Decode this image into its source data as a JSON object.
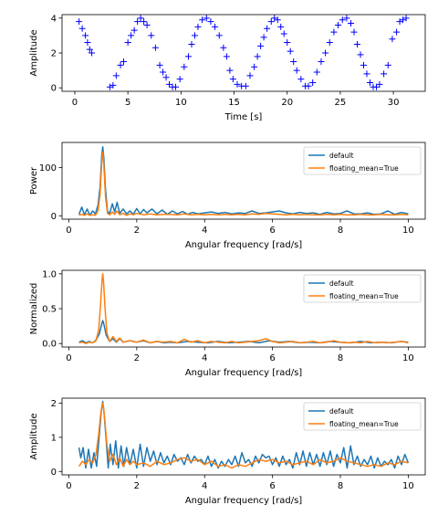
{
  "chart_data": [
    {
      "type": "scatter",
      "xlabel": "Time [s]",
      "ylabel": "Amplitude",
      "xlim": [
        -1.2,
        33.0
      ],
      "ylim": [
        -0.2,
        4.2
      ],
      "xticks": [
        0,
        5,
        10,
        15,
        20,
        25,
        30
      ],
      "yticks": [
        0,
        2,
        4
      ],
      "marker": "+",
      "series": [
        {
          "color": "#0000ff",
          "x": [
            0.4,
            0.7,
            1.0,
            1.2,
            1.4,
            1.6,
            3.3,
            3.6,
            3.9,
            4.3,
            4.6,
            5.0,
            5.3,
            5.6,
            5.9,
            6.2,
            6.5,
            6.8,
            7.2,
            7.6,
            8.0,
            8.3,
            8.6,
            8.9,
            9.2,
            9.5,
            9.9,
            10.3,
            10.7,
            11.0,
            11.3,
            11.6,
            12.0,
            12.4,
            12.8,
            13.2,
            13.6,
            14.0,
            14.3,
            14.6,
            14.9,
            15.3,
            15.7,
            16.1,
            16.5,
            16.9,
            17.2,
            17.5,
            17.8,
            18.1,
            18.5,
            18.8,
            19.1,
            19.4,
            19.7,
            20.0,
            20.3,
            20.6,
            20.9,
            21.3,
            21.7,
            22.0,
            22.4,
            22.8,
            23.2,
            23.6,
            24.0,
            24.4,
            24.8,
            25.2,
            25.6,
            26.0,
            26.3,
            26.6,
            26.9,
            27.2,
            27.5,
            27.8,
            28.1,
            28.4,
            28.7,
            29.1,
            29.5,
            29.9,
            30.3,
            30.6,
            30.9,
            31.2
          ],
          "y": [
            3.8,
            3.4,
            3.0,
            2.6,
            2.2,
            2.0,
            0.05,
            0.15,
            0.7,
            1.3,
            1.5,
            2.6,
            3.0,
            3.3,
            3.8,
            4.0,
            3.8,
            3.6,
            3.0,
            2.3,
            1.3,
            0.9,
            0.6,
            0.2,
            0.05,
            0.05,
            0.5,
            1.2,
            1.8,
            2.5,
            3.0,
            3.5,
            3.9,
            4.0,
            3.8,
            3.5,
            3.0,
            2.3,
            1.8,
            1.0,
            0.5,
            0.2,
            0.1,
            0.1,
            0.7,
            1.2,
            1.8,
            2.4,
            2.9,
            3.4,
            3.8,
            4.0,
            3.9,
            3.5,
            3.1,
            2.6,
            2.1,
            1.5,
            1.0,
            0.5,
            0.1,
            0.1,
            0.3,
            0.9,
            1.5,
            2.0,
            2.6,
            3.2,
            3.6,
            3.9,
            4.0,
            3.7,
            3.2,
            2.5,
            1.9,
            1.3,
            0.8,
            0.3,
            0.05,
            0.05,
            0.2,
            0.8,
            1.3,
            2.8,
            3.2,
            3.8,
            3.9,
            4.0
          ]
        }
      ]
    },
    {
      "type": "line",
      "xlabel": "Angular frequency [rad/s]",
      "ylabel": "Power",
      "xlim": [
        -0.2,
        10.5
      ],
      "ylim": [
        -7,
        152
      ],
      "xticks": [
        0,
        2,
        4,
        6,
        8,
        10
      ],
      "yticks": [
        0,
        100
      ],
      "legend": "top-right",
      "series": [
        {
          "name": "default",
          "color": "#1f77b4",
          "x": [
            0.3,
            0.38,
            0.46,
            0.54,
            0.62,
            0.7,
            0.78,
            0.86,
            0.92,
            0.97,
            1.0,
            1.03,
            1.08,
            1.14,
            1.2,
            1.28,
            1.35,
            1.42,
            1.5,
            1.6,
            1.7,
            1.8,
            1.9,
            2.0,
            2.1,
            2.2,
            2.3,
            2.45,
            2.6,
            2.75,
            2.9,
            3.05,
            3.2,
            3.35,
            3.5,
            3.65,
            3.8,
            4.0,
            4.2,
            4.4,
            4.6,
            4.8,
            5.0,
            5.2,
            5.4,
            5.6,
            5.8,
            6.0,
            6.2,
            6.4,
            6.6,
            6.8,
            7.0,
            7.2,
            7.4,
            7.6,
            7.8,
            8.0,
            8.2,
            8.4,
            8.6,
            8.8,
            9.0,
            9.2,
            9.4,
            9.6,
            9.8,
            10.0
          ],
          "y": [
            3,
            18,
            2,
            14,
            1,
            10,
            4,
            22,
            60,
            125,
            143,
            120,
            55,
            10,
            4,
            25,
            8,
            28,
            5,
            14,
            4,
            10,
            3,
            15,
            4,
            13,
            6,
            14,
            4,
            12,
            3,
            10,
            4,
            9,
            3,
            7,
            4,
            6,
            8,
            5,
            7,
            4,
            6,
            5,
            10,
            5,
            6,
            8,
            10,
            6,
            4,
            7,
            5,
            6,
            3,
            7,
            4,
            5,
            10,
            4,
            4,
            6,
            3,
            4,
            10,
            3,
            7,
            4
          ]
        },
        {
          "name": "floating_mean=True",
          "color": "#ff7f0e",
          "x": [
            0.3,
            0.38,
            0.46,
            0.54,
            0.62,
            0.7,
            0.78,
            0.86,
            0.92,
            0.97,
            1.0,
            1.03,
            1.08,
            1.14,
            1.2,
            1.28,
            1.35,
            1.42,
            1.5,
            1.6,
            1.7,
            1.8,
            1.9,
            2.0,
            2.2,
            2.4,
            2.6,
            2.8,
            3.0,
            3.2,
            3.4,
            3.6,
            3.8,
            4.0,
            4.2,
            4.4,
            4.6,
            4.8,
            5.0,
            5.2,
            5.4,
            5.6,
            5.8,
            6.0,
            6.2,
            6.4,
            6.6,
            6.8,
            7.0,
            7.2,
            7.4,
            7.6,
            7.8,
            8.0,
            8.2,
            8.4,
            8.6,
            8.8,
            9.0,
            9.2,
            9.4,
            9.6,
            9.8,
            10.0
          ],
          "y": [
            1,
            3,
            1,
            4,
            1,
            2,
            1,
            10,
            45,
            110,
            132,
            105,
            40,
            5,
            2,
            8,
            3,
            10,
            2,
            5,
            1,
            4,
            2,
            5,
            2,
            4,
            2,
            3,
            3,
            2,
            4,
            2,
            3,
            2,
            3,
            2,
            3,
            2,
            3,
            2,
            4,
            3,
            5,
            4,
            3,
            2,
            3,
            2,
            3,
            2,
            2,
            3,
            2,
            3,
            2,
            2,
            3,
            2,
            2,
            3,
            2,
            2,
            3,
            2
          ]
        }
      ]
    },
    {
      "type": "line",
      "xlabel": "Angular frequency [rad/s]",
      "ylabel": "Normalized",
      "xlim": [
        -0.2,
        10.5
      ],
      "ylim": [
        -0.05,
        1.05
      ],
      "xticks": [
        0,
        2,
        4,
        6,
        8,
        10
      ],
      "yticks": [
        0.0,
        0.5,
        1.0
      ],
      "legend": "top-right",
      "series": [
        {
          "name": "default",
          "color": "#1f77b4",
          "x": [
            0.3,
            0.4,
            0.5,
            0.6,
            0.7,
            0.8,
            0.9,
            0.97,
            1.0,
            1.03,
            1.1,
            1.2,
            1.3,
            1.4,
            1.5,
            1.6,
            1.8,
            2.0,
            2.2,
            2.4,
            2.6,
            2.8,
            3.0,
            3.2,
            3.5,
            3.8,
            4.1,
            4.4,
            4.7,
            5.0,
            5.3,
            5.6,
            5.9,
            6.2,
            6.5,
            6.8,
            7.1,
            7.4,
            7.7,
            8.0,
            8.3,
            8.6,
            8.9,
            9.2,
            9.5,
            9.8,
            10.0
          ],
          "y": [
            0.02,
            0.04,
            0.01,
            0.03,
            0.01,
            0.05,
            0.14,
            0.28,
            0.33,
            0.28,
            0.12,
            0.03,
            0.07,
            0.02,
            0.07,
            0.02,
            0.04,
            0.02,
            0.04,
            0.01,
            0.03,
            0.01,
            0.02,
            0.01,
            0.03,
            0.02,
            0.01,
            0.03,
            0.01,
            0.02,
            0.03,
            0.01,
            0.04,
            0.02,
            0.03,
            0.01,
            0.02,
            0.01,
            0.03,
            0.02,
            0.01,
            0.03,
            0.01,
            0.02,
            0.01,
            0.03,
            0.02
          ]
        },
        {
          "name": "floating_mean=True",
          "color": "#ff7f0e",
          "x": [
            0.3,
            0.4,
            0.5,
            0.6,
            0.7,
            0.8,
            0.88,
            0.94,
            0.98,
            1.0,
            1.02,
            1.06,
            1.12,
            1.2,
            1.3,
            1.4,
            1.5,
            1.6,
            1.8,
            2.0,
            2.2,
            2.4,
            2.6,
            2.8,
            3.0,
            3.2,
            3.4,
            3.6,
            3.8,
            4.0,
            4.2,
            4.4,
            4.6,
            4.8,
            5.0,
            5.2,
            5.4,
            5.6,
            5.8,
            6.0,
            6.2,
            6.4,
            6.6,
            6.8,
            7.0,
            7.2,
            7.4,
            7.6,
            7.8,
            8.0,
            8.2,
            8.4,
            8.6,
            8.8,
            9.0,
            9.2,
            9.4,
            9.6,
            9.8,
            10.0
          ],
          "y": [
            0.01,
            0.02,
            0.0,
            0.02,
            0.01,
            0.04,
            0.2,
            0.6,
            0.92,
            1.0,
            0.9,
            0.55,
            0.15,
            0.03,
            0.1,
            0.03,
            0.08,
            0.02,
            0.04,
            0.02,
            0.05,
            0.01,
            0.03,
            0.02,
            0.03,
            0.01,
            0.06,
            0.02,
            0.04,
            0.01,
            0.03,
            0.02,
            0.01,
            0.03,
            0.01,
            0.02,
            0.03,
            0.04,
            0.07,
            0.03,
            0.01,
            0.02,
            0.03,
            0.01,
            0.02,
            0.03,
            0.01,
            0.02,
            0.04,
            0.02,
            0.01,
            0.02,
            0.01,
            0.03,
            0.01,
            0.02,
            0.01,
            0.02,
            0.03,
            0.01
          ]
        }
      ]
    },
    {
      "type": "line",
      "xlabel": "Angular frequency [rad/s]",
      "ylabel": "Amplitude",
      "xlim": [
        -0.2,
        10.5
      ],
      "ylim": [
        -0.1,
        2.15
      ],
      "xticks": [
        0,
        2,
        4,
        6,
        8,
        10
      ],
      "yticks": [
        0,
        1,
        2
      ],
      "legend": "top-right",
      "series": [
        {
          "name": "default",
          "color": "#1f77b4",
          "x": [
            0.3,
            0.35,
            0.42,
            0.5,
            0.58,
            0.66,
            0.74,
            0.82,
            0.9,
            0.96,
            1.0,
            1.04,
            1.1,
            1.16,
            1.22,
            1.3,
            1.38,
            1.46,
            1.54,
            1.62,
            1.7,
            1.8,
            1.9,
            2.0,
            2.1,
            2.2,
            2.3,
            2.4,
            2.5,
            2.6,
            2.7,
            2.8,
            2.9,
            3.0,
            3.1,
            3.2,
            3.3,
            3.4,
            3.5,
            3.6,
            3.7,
            3.8,
            3.9,
            4.0,
            4.1,
            4.2,
            4.3,
            4.4,
            4.5,
            4.6,
            4.7,
            4.8,
            4.9,
            5.0,
            5.1,
            5.2,
            5.3,
            5.4,
            5.5,
            5.6,
            5.7,
            5.8,
            5.9,
            6.0,
            6.1,
            6.2,
            6.3,
            6.4,
            6.5,
            6.6,
            6.7,
            6.8,
            6.9,
            7.0,
            7.1,
            7.2,
            7.3,
            7.4,
            7.5,
            7.6,
            7.7,
            7.8,
            7.9,
            8.0,
            8.1,
            8.2,
            8.3,
            8.4,
            8.5,
            8.6,
            8.7,
            8.8,
            8.9,
            9.0,
            9.1,
            9.2,
            9.3,
            9.4,
            9.5,
            9.6,
            9.7,
            9.8,
            9.9,
            10.0
          ],
          "y": [
            0.7,
            0.4,
            0.7,
            0.1,
            0.65,
            0.1,
            0.55,
            0.15,
            1.1,
            1.8,
            2.05,
            1.7,
            0.9,
            0.1,
            0.8,
            0.2,
            0.9,
            0.1,
            0.75,
            0.15,
            0.7,
            0.2,
            0.65,
            0.1,
            0.8,
            0.15,
            0.7,
            0.3,
            0.6,
            0.2,
            0.55,
            0.25,
            0.45,
            0.2,
            0.5,
            0.3,
            0.4,
            0.2,
            0.5,
            0.25,
            0.45,
            0.3,
            0.35,
            0.2,
            0.45,
            0.15,
            0.35,
            0.1,
            0.3,
            0.15,
            0.35,
            0.2,
            0.45,
            0.15,
            0.55,
            0.25,
            0.35,
            0.15,
            0.45,
            0.25,
            0.5,
            0.4,
            0.45,
            0.2,
            0.4,
            0.15,
            0.45,
            0.2,
            0.35,
            0.1,
            0.55,
            0.2,
            0.6,
            0.15,
            0.55,
            0.2,
            0.5,
            0.15,
            0.55,
            0.2,
            0.6,
            0.15,
            0.5,
            0.25,
            0.7,
            0.1,
            0.75,
            0.2,
            0.45,
            0.15,
            0.35,
            0.2,
            0.45,
            0.1,
            0.4,
            0.15,
            0.3,
            0.2,
            0.35,
            0.1,
            0.45,
            0.2,
            0.5,
            0.25
          ]
        },
        {
          "name": "floating_mean=True",
          "color": "#ff7f0e",
          "x": [
            0.3,
            0.4,
            0.5,
            0.6,
            0.7,
            0.8,
            0.88,
            0.94,
            0.98,
            1.0,
            1.02,
            1.06,
            1.12,
            1.2,
            1.3,
            1.4,
            1.5,
            1.6,
            1.7,
            1.8,
            1.9,
            2.0,
            2.2,
            2.4,
            2.6,
            2.8,
            3.0,
            3.2,
            3.4,
            3.6,
            3.8,
            4.0,
            4.2,
            4.4,
            4.6,
            4.8,
            5.0,
            5.2,
            5.4,
            5.6,
            5.8,
            6.0,
            6.2,
            6.4,
            6.6,
            6.8,
            7.0,
            7.2,
            7.4,
            7.6,
            7.8,
            8.0,
            8.2,
            8.4,
            8.6,
            8.8,
            9.0,
            9.2,
            9.4,
            9.6,
            9.8,
            10.0
          ],
          "y": [
            0.15,
            0.3,
            0.2,
            0.35,
            0.25,
            0.5,
            1.1,
            1.7,
            1.95,
            2.0,
            1.9,
            1.5,
            0.8,
            0.3,
            0.5,
            0.2,
            0.4,
            0.15,
            0.35,
            0.2,
            0.3,
            0.2,
            0.25,
            0.15,
            0.3,
            0.2,
            0.25,
            0.35,
            0.4,
            0.3,
            0.35,
            0.2,
            0.3,
            0.15,
            0.2,
            0.1,
            0.2,
            0.15,
            0.25,
            0.35,
            0.3,
            0.35,
            0.25,
            0.3,
            0.2,
            0.25,
            0.3,
            0.2,
            0.35,
            0.25,
            0.3,
            0.4,
            0.3,
            0.25,
            0.2,
            0.15,
            0.2,
            0.15,
            0.25,
            0.2,
            0.3,
            0.25
          ]
        }
      ]
    }
  ]
}
